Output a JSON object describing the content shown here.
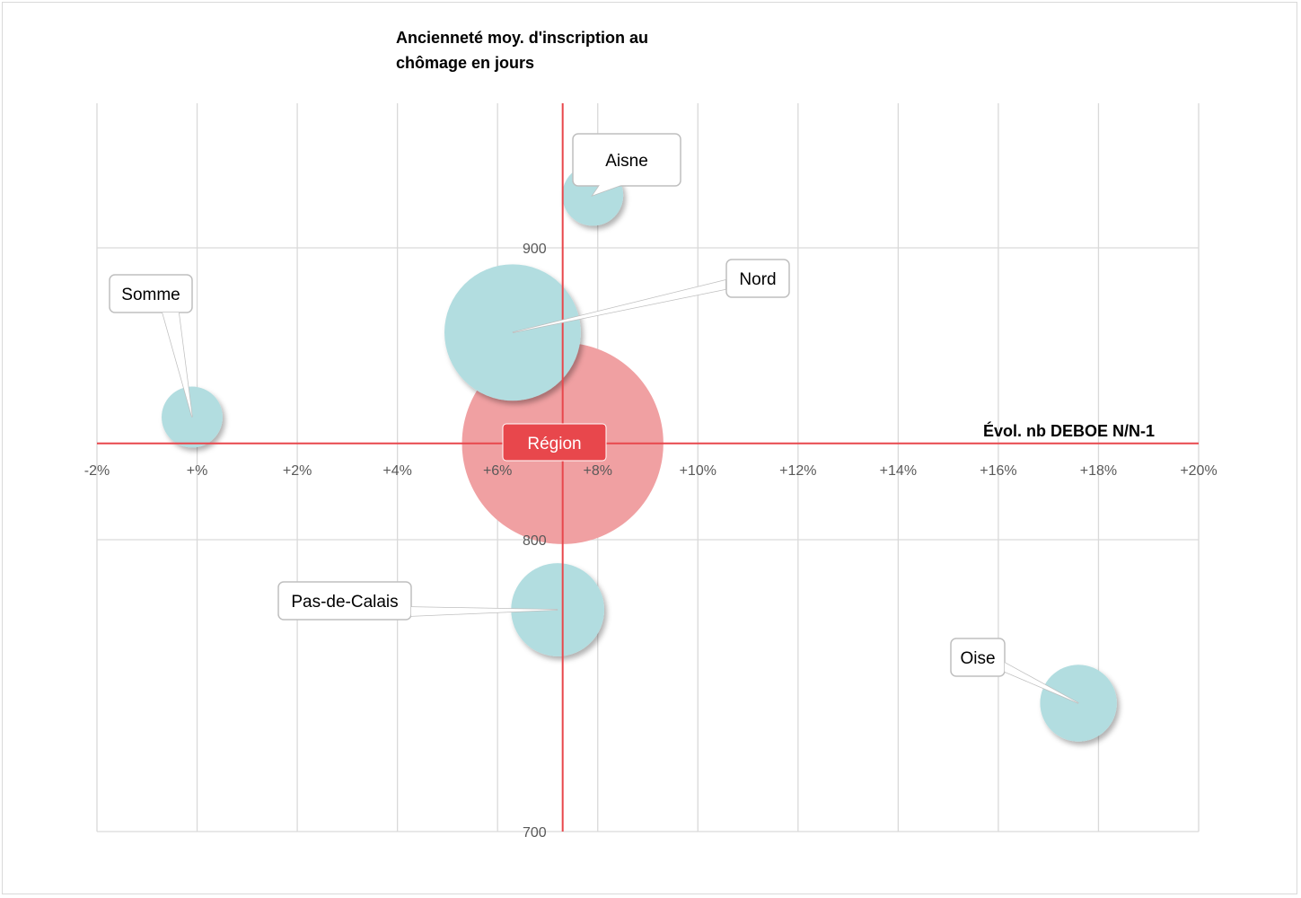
{
  "chart_data": {
    "type": "bubble",
    "ylabel_line1": "Ancienneté moy. d'inscription au",
    "ylabel_line2": "chômage en jours",
    "xlabel": "Évol. nb DEBOE N/N-1",
    "xlim": [
      -2,
      20
    ],
    "ylim": [
      700,
      980
    ],
    "x_ticks": [
      -2,
      0,
      2,
      4,
      6,
      8,
      10,
      12,
      14,
      16,
      18,
      20
    ],
    "x_tick_labels": [
      "-2%",
      "+%",
      "+2%",
      "+4%",
      "+6%",
      "+8%",
      "+10%",
      "+12%",
      "+14%",
      "+16%",
      "+18%",
      "+20%"
    ],
    "y_ticks": [
      700,
      800,
      900
    ],
    "y_tick_labels": [
      "700",
      "800",
      "900"
    ],
    "grid": true,
    "crosshair": {
      "x": 7.3,
      "y": 833
    },
    "region": {
      "name": "Région",
      "x": 7.3,
      "y": 833,
      "color": "#e8474c",
      "fill": "#f0a0a2"
    },
    "bubble_color": "#b2dde0",
    "points": [
      {
        "name": "Aisne",
        "x": 7.9,
        "y": 918
      },
      {
        "name": "Nord",
        "x": 6.3,
        "y": 871
      },
      {
        "name": "Somme",
        "x": -0.1,
        "y": 842
      },
      {
        "name": "Pas-de-Calais",
        "x": 7.2,
        "y": 776
      },
      {
        "name": "Oise",
        "x": 17.6,
        "y": 744
      }
    ],
    "size_scale": "area",
    "sizes": {
      "Aisne": 12,
      "Nord": 60,
      "Somme": 12,
      "Pas-de-Calais": 28,
      "Oise": 19,
      "Région": 131
    }
  }
}
